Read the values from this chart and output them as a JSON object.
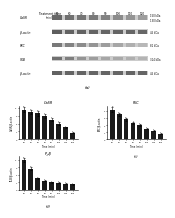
{
  "title_top": "Treatment time  50   60   70   80   90   100  110  120",
  "time_unit": "(min)",
  "blot_labels": [
    "CaSR",
    "β-actin",
    "PKC",
    "IP₃B",
    "β-actin"
  ],
  "band_sizes": [
    "150 kDa",
    "130 kDa",
    "45 kDa",
    "81 kDa",
    "314 kDa",
    "45 kDa"
  ],
  "panel_label_a": "(a)",
  "panel_label_b": "(b)",
  "panel_label_c": "(c)",
  "panel_label_d": "(d)",
  "subplot_title_b": "CaSR",
  "subplot_title_c": "PKC",
  "subplot_title_d": "IP₃B",
  "xlabel": "Time (min)",
  "time_points": [
    "50",
    "60",
    "70",
    "80",
    "90",
    "100",
    "110",
    "120"
  ],
  "casr_values": [
    3.8,
    3.5,
    3.3,
    3.0,
    2.5,
    2.0,
    1.5,
    0.8
  ],
  "pkc_values": [
    4.2,
    3.5,
    2.8,
    2.3,
    2.0,
    1.5,
    1.2,
    0.8
  ],
  "ipb_values": [
    4.0,
    2.8,
    1.5,
    1.2,
    1.0,
    0.9,
    0.8,
    0.7
  ],
  "bar_color": "#1a1a1a",
  "bg_color": "#ffffff",
  "band_bg": "#d0d0d0",
  "band_dark": "#888888",
  "band_darker": "#555555",
  "blot_rows": 5,
  "n_lanes": 8
}
